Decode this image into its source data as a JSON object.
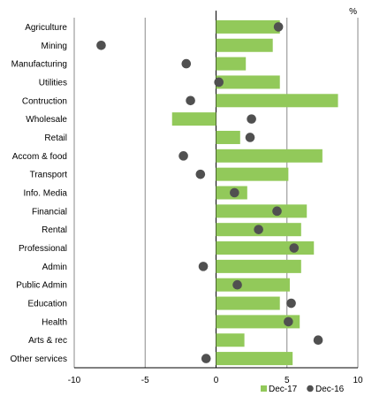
{
  "chart_data": {
    "type": "bar",
    "orientation": "horizontal",
    "unit_label": "%",
    "categories": [
      "Agriculture",
      "Mining",
      "Manufacturing",
      "Utilities",
      "Contruction",
      "Wholesale",
      "Retail",
      "Accom & food",
      "Transport",
      "Info. Media",
      "Financial",
      "Rental",
      "Professional",
      "Admin",
      "Public Admin",
      "Education",
      "Health",
      "Arts & rec",
      "Other services"
    ],
    "series": [
      {
        "name": "Dec-17",
        "mark": "bar",
        "color": "#92c95a",
        "values": [
          4.5,
          4.0,
          2.1,
          4.5,
          8.6,
          -3.1,
          1.7,
          7.5,
          5.1,
          2.2,
          6.4,
          6.0,
          6.9,
          6.0,
          5.2,
          4.5,
          5.9,
          2.0,
          5.4
        ]
      },
      {
        "name": "Dec-16",
        "mark": "point",
        "color": "#505050",
        "values": [
          4.4,
          -8.1,
          -2.1,
          0.2,
          -1.8,
          2.5,
          2.4,
          -2.3,
          -1.1,
          1.3,
          4.3,
          3.0,
          5.5,
          -0.9,
          1.5,
          5.3,
          5.1,
          7.2,
          -0.7
        ]
      }
    ],
    "xlim": [
      -10,
      10
    ],
    "x_ticks": [
      "-10",
      "-5",
      "0",
      "5",
      "10"
    ],
    "grid": "vertical",
    "legend_position": "bottom-right"
  }
}
